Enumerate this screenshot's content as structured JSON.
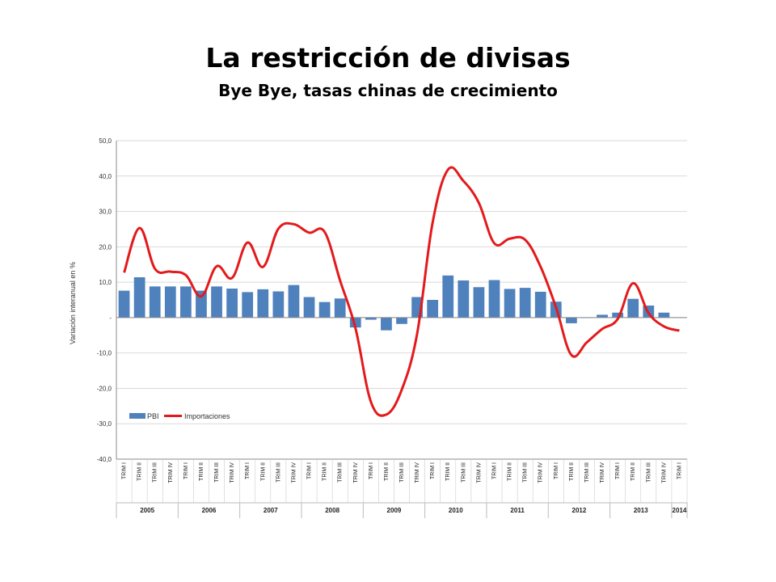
{
  "page": {
    "title": "La restricción de divisas",
    "subtitle": "Bye Bye, tasas chinas de crecimiento"
  },
  "chart_data": {
    "type": "bar",
    "ylabel": "Variación interanual en %",
    "ylim": [
      -40,
      50
    ],
    "yticks": [
      50,
      40,
      30,
      20,
      10,
      0,
      -10,
      -20,
      -30,
      -40
    ],
    "ytick_labels": [
      "50,0",
      "40,0",
      "30,0",
      "20,0",
      "10,0",
      "-",
      "-10,0",
      "-20,0",
      "-30,0",
      "-40,0"
    ],
    "grid": true,
    "legend_position": "bottom-left",
    "colors": {
      "bars": "#4f81bd",
      "line": "#e31a1c"
    },
    "categories": [
      "TRIM I",
      "TRIM II",
      "TRIM III",
      "TRIM IV",
      "TRIM I",
      "TRIM II",
      "TRIM III",
      "TRIM IV",
      "TRIM I",
      "TRIM II",
      "TRIM III",
      "TRIM IV",
      "TRIM I",
      "TRIM II",
      "TRIM III",
      "TRIM IV",
      "TRIM I",
      "TRIM II",
      "TRIM III",
      "TRIM IV",
      "TRIM I",
      "TRIM II",
      "TRIM III",
      "TRIM IV",
      "TRIM I",
      "TRIM II",
      "TRIM III",
      "TRIM IV",
      "TRIM I",
      "TRIM II",
      "TRIM III",
      "TRIM IV",
      "TRIM I",
      "TRIM II",
      "TRIM III",
      "TRIM IV",
      "TRIM I"
    ],
    "years": [
      {
        "label": "2005",
        "quarters": 4
      },
      {
        "label": "2006",
        "quarters": 4
      },
      {
        "label": "2007",
        "quarters": 4
      },
      {
        "label": "2008",
        "quarters": 4
      },
      {
        "label": "2009",
        "quarters": 4
      },
      {
        "label": "2010",
        "quarters": 4
      },
      {
        "label": "2011",
        "quarters": 4
      },
      {
        "label": "2012",
        "quarters": 4
      },
      {
        "label": "2013",
        "quarters": 4
      },
      {
        "label": "2014",
        "quarters": 1
      }
    ],
    "series": [
      {
        "name": "PBI",
        "type": "bar",
        "values": [
          7.6,
          11.4,
          8.8,
          8.8,
          8.8,
          7.6,
          8.8,
          8.2,
          7.2,
          8.0,
          7.4,
          9.2,
          5.8,
          4.4,
          5.4,
          -2.8,
          -0.6,
          -3.6,
          -1.8,
          5.8,
          5.0,
          11.9,
          10.5,
          8.6,
          10.6,
          8.1,
          8.4,
          7.3,
          4.5,
          -1.6,
          0.0,
          0.8,
          1.4,
          5.3,
          3.4,
          1.4,
          0.1
        ]
      },
      {
        "name": "Importaciones",
        "type": "line",
        "values": [
          12.7,
          25.3,
          13.8,
          13.0,
          12.0,
          6.0,
          14.5,
          11.2,
          21.2,
          14.3,
          25.1,
          26.4,
          24.0,
          24.2,
          10.5,
          -3.0,
          -23.8,
          -27.4,
          -20.4,
          -4.5,
          26.8,
          41.8,
          38.6,
          32.4,
          21.0,
          22.3,
          22.0,
          14.4,
          2.9,
          -10.6,
          -7.0,
          -3.2,
          -0.4,
          9.7,
          1.3,
          -2.5,
          -3.7
        ]
      }
    ]
  }
}
